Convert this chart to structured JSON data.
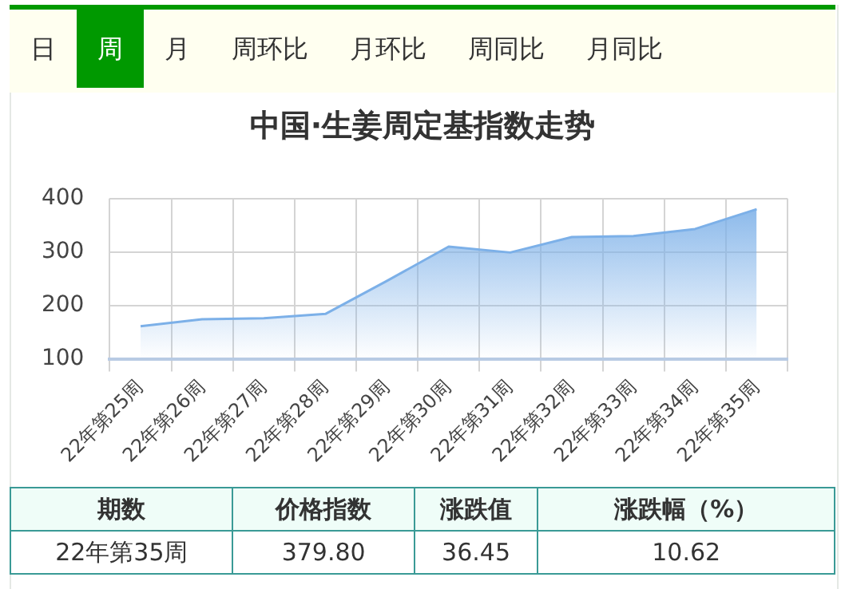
{
  "chart_data": {
    "type": "area",
    "title": "中国·生姜周定基指数走势",
    "categories": [
      "22年第25周",
      "22年第26周",
      "22年第27周",
      "22年第28周",
      "22年第29周",
      "22年第30周",
      "22年第31周",
      "22年第32周",
      "22年第33周",
      "22年第34周",
      "22年第35周"
    ],
    "series": [
      {
        "color": "#7cb0e8",
        "values": [
          161,
          174,
          176,
          184,
          246,
          310,
          299,
          328,
          330,
          343,
          380
        ]
      }
    ],
    "ylim": [
      100,
      400
    ],
    "yticks": [
      100,
      200,
      300,
      400
    ],
    "grid": true,
    "legend": false,
    "marker": "none",
    "annotations": [
      "日",
      "周",
      "月",
      "周环比",
      "月环比",
      "周同比",
      "月同比",
      "期数",
      "价格指数",
      "涨跌值",
      "涨跌幅（%）",
      "22年第35周",
      "379.80",
      "36.45",
      "10.62"
    ]
  }
}
